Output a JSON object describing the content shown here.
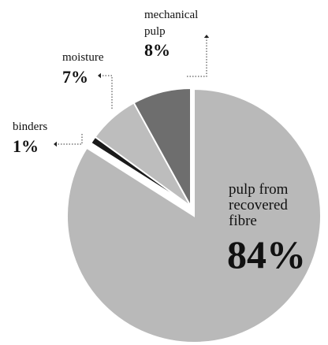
{
  "chart_data": {
    "type": "pie",
    "title": "",
    "slices": [
      {
        "name_lines": [
          "pulp from",
          "recovered",
          "fibre"
        ],
        "value": 84,
        "value_label": "84%",
        "color": "#b9b9b9",
        "exploded": false
      },
      {
        "name_lines": [
          "binders"
        ],
        "value": 1,
        "value_label": "1%",
        "color": "#1a1a1a",
        "exploded": true
      },
      {
        "name_lines": [
          "moisture"
        ],
        "value": 7,
        "value_label": "7%",
        "color": "#bdbdbd",
        "exploded": true
      },
      {
        "name_lines": [
          "mechanical",
          "pulp"
        ],
        "value": 8,
        "value_label": "8%",
        "color": "#6e6e6e",
        "exploded": true
      }
    ],
    "legend": "none",
    "label_style": "inline and callout labels with dotted leader arrows"
  }
}
